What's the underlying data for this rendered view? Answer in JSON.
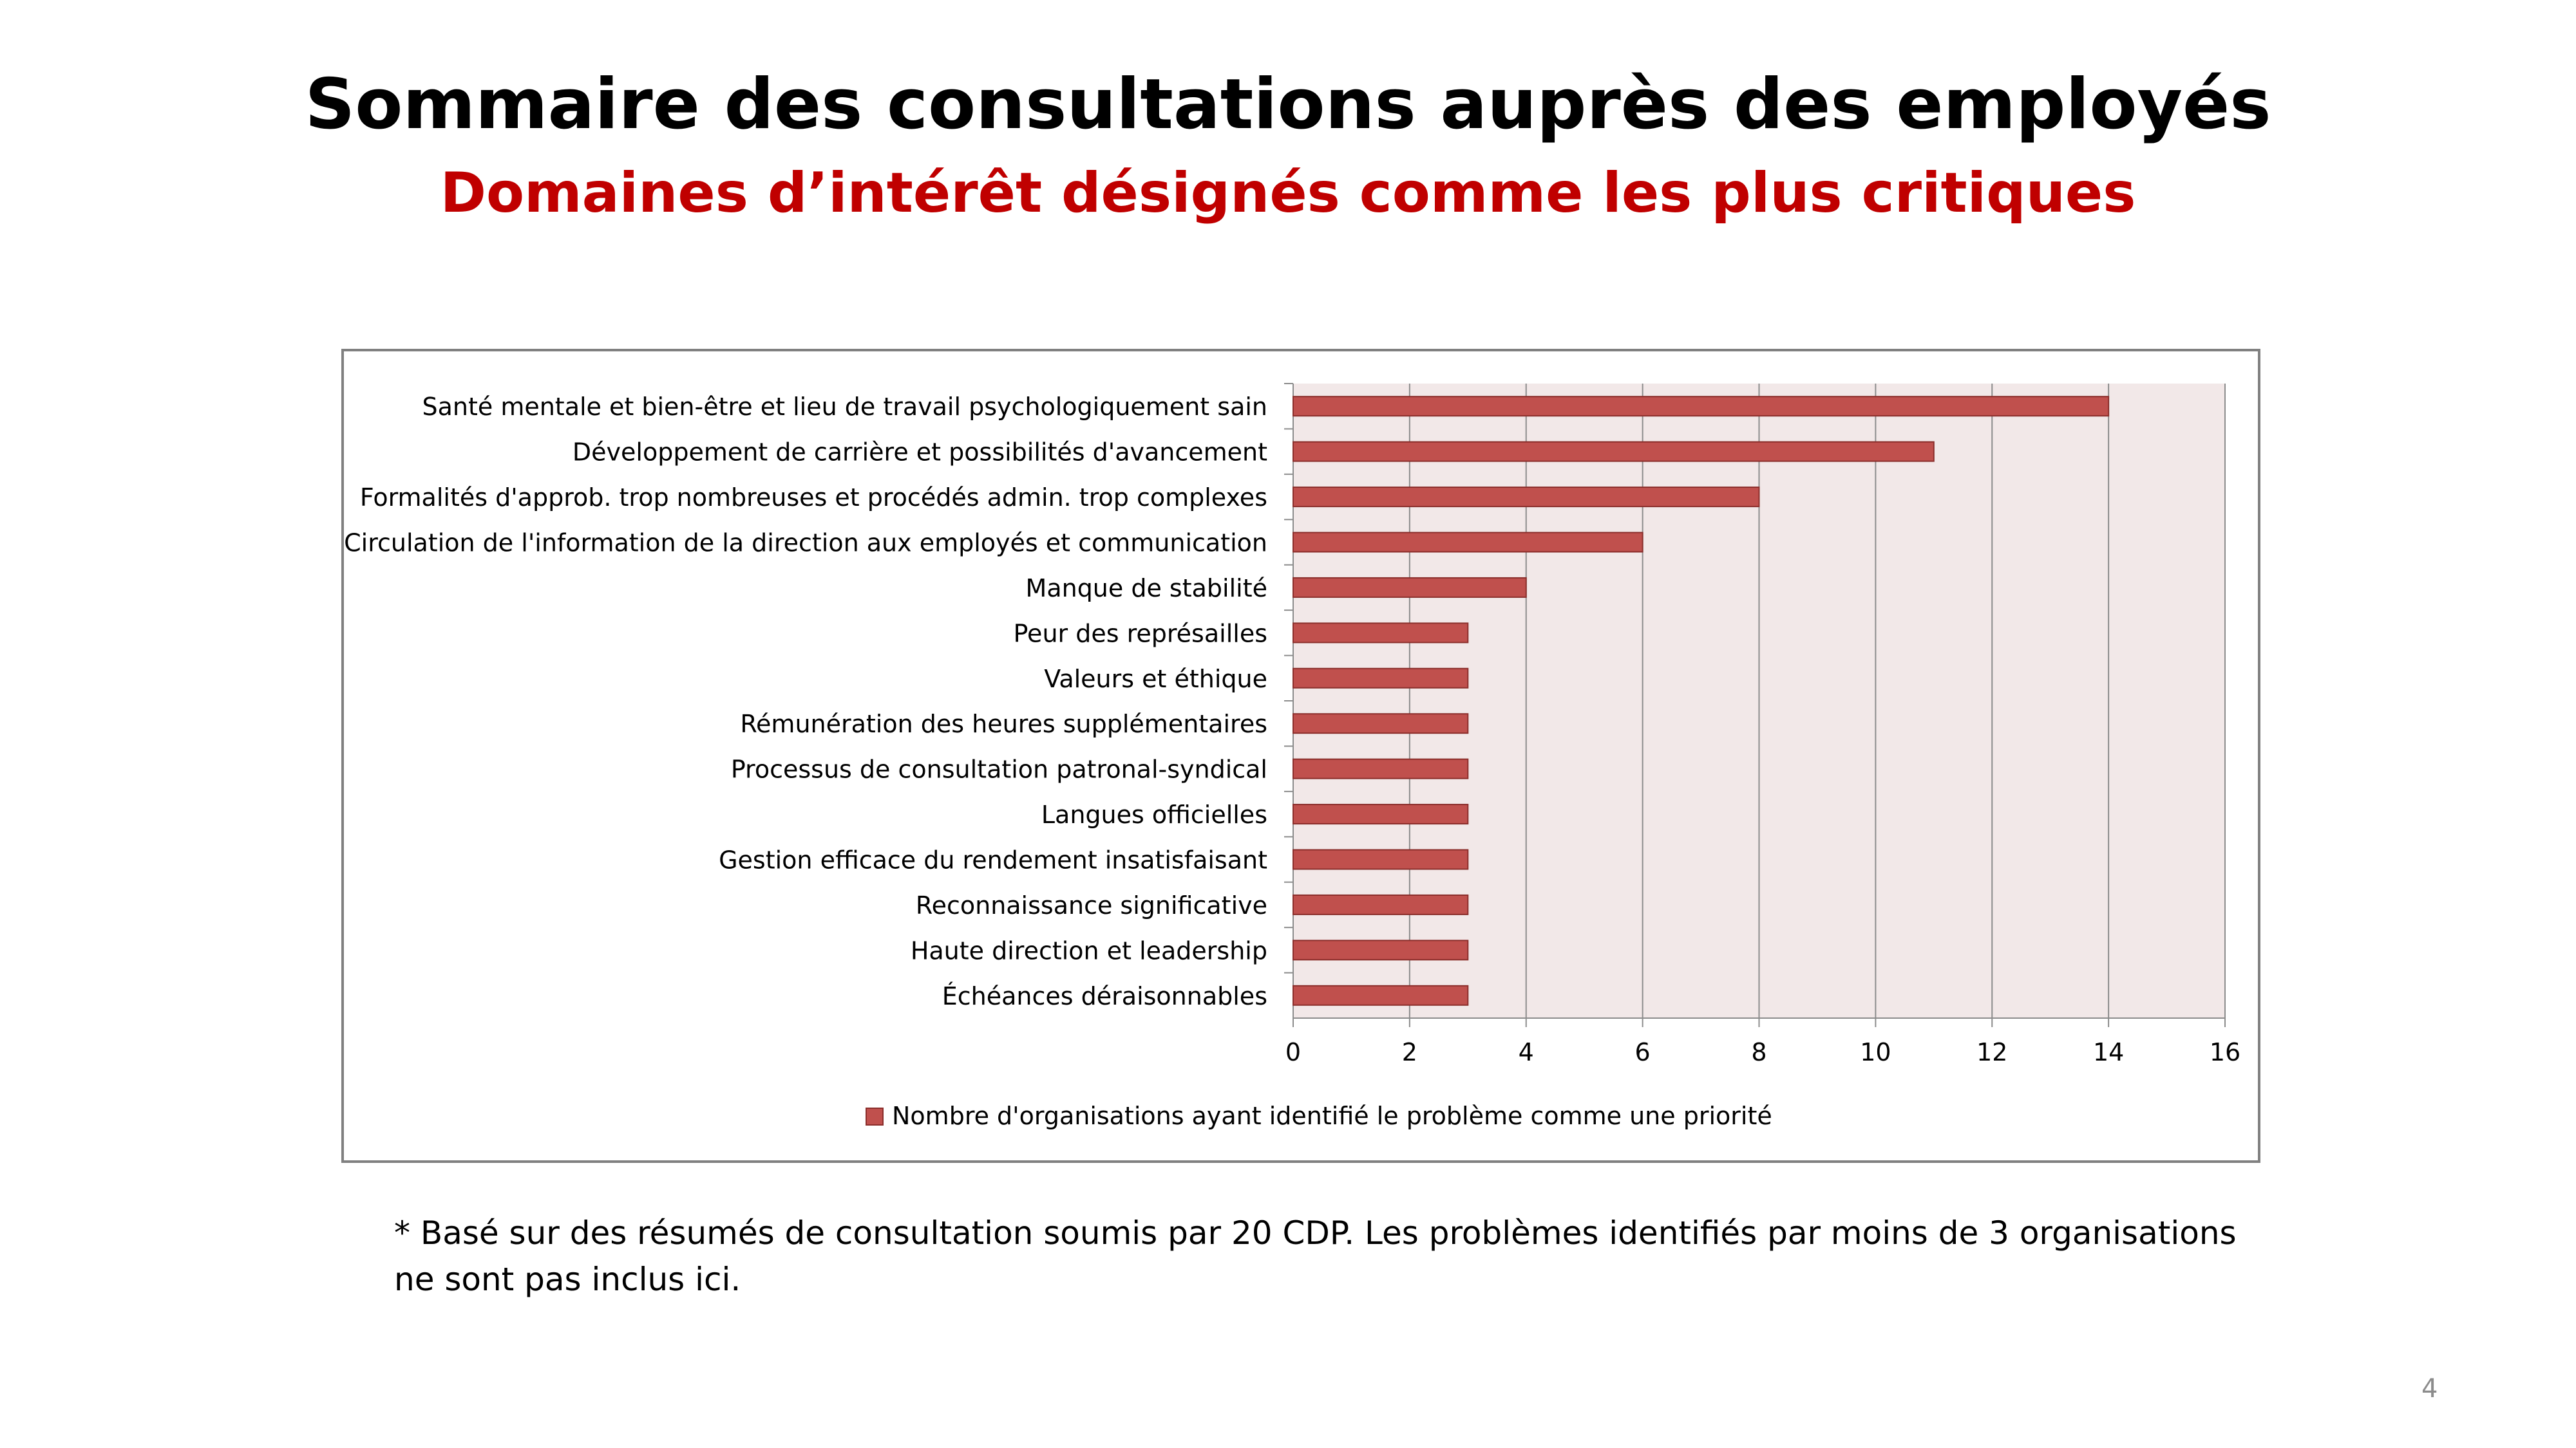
{
  "slide": {
    "title": "Sommaire des consultations auprès des employés",
    "subtitle": "Domaines d’intérêt désignés comme les plus critiques",
    "footnote_line1": "* Basé sur des résumés de consultation soumis par 20 CDP. Les problèmes identifiés par moins de 3 organisations",
    "footnote_line2": "ne sont pas inclus ici.",
    "page_number": "4"
  },
  "chart_data": {
    "type": "bar",
    "orientation": "horizontal",
    "categories": [
      "Santé mentale et bien-être et lieu de travail psychologiquement sain",
      "Développement de carrière et possibilités d'avancement",
      "Formalités d'approb. trop nombreuses et procédés admin. trop complexes",
      "Circulation de l'information de la direction aux employés et communication",
      "Manque de stabilité",
      "Peur des représailles",
      "Valeurs et éthique",
      "Rémunération des heures supplémentaires",
      "Processus de consultation patronal-syndical",
      "Langues officielles",
      "Gestion efficace du rendement insatisfaisant",
      "Reconnaissance significative",
      "Haute direction et leadership",
      "Échéances déraisonnables"
    ],
    "series": [
      {
        "name": "Nombre d'organisations ayant identifié le problème comme une priorité",
        "values": [
          14,
          11,
          8,
          6,
          4,
          3,
          3,
          3,
          3,
          3,
          3,
          3,
          3,
          3
        ],
        "color": "#c0504d"
      }
    ],
    "xlim": [
      0,
      16
    ],
    "xticks": [
      0,
      2,
      4,
      6,
      8,
      10,
      12,
      14,
      16
    ],
    "grid": true,
    "plot_background": "#f2e8e8",
    "legend_position": "bottom"
  }
}
